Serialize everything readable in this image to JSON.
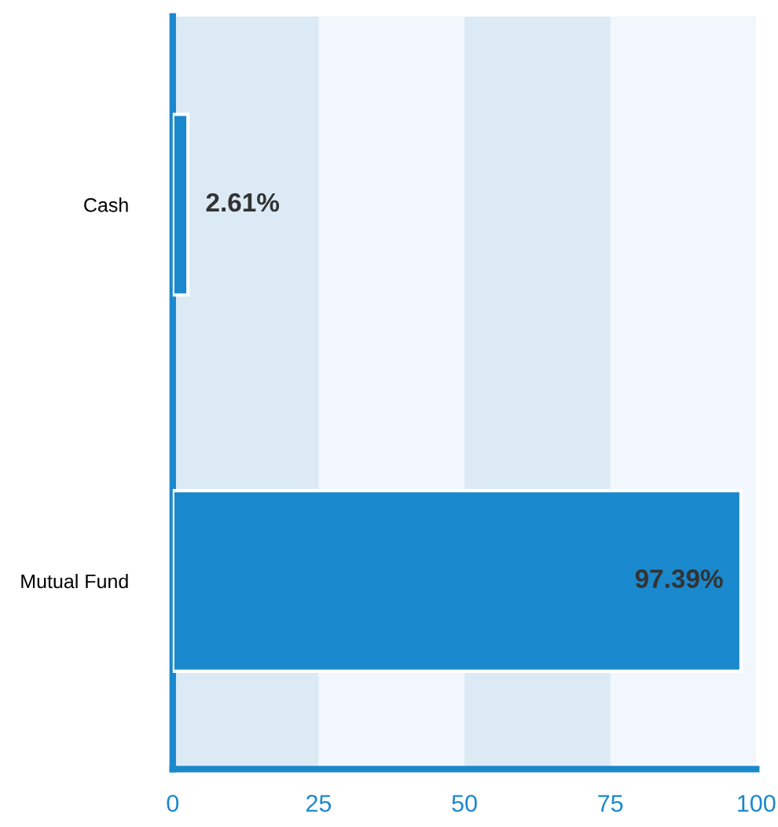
{
  "chart_data": {
    "type": "bar",
    "orientation": "horizontal",
    "categories": [
      "Cash",
      "Mutual Fund"
    ],
    "values": [
      2.61,
      97.39
    ],
    "color": "#1a88cc",
    "value_labels": [
      "2.61%",
      "97.39%"
    ],
    "xlim": [
      0,
      100
    ],
    "xticks": [
      0,
      25,
      50,
      75,
      100
    ],
    "bands": [
      {
        "axis": "x",
        "from": 0,
        "to": 25,
        "color": "#dbeaf5"
      },
      {
        "axis": "x",
        "from": 50,
        "to": 75,
        "color": "#dbeaf5"
      }
    ]
  }
}
